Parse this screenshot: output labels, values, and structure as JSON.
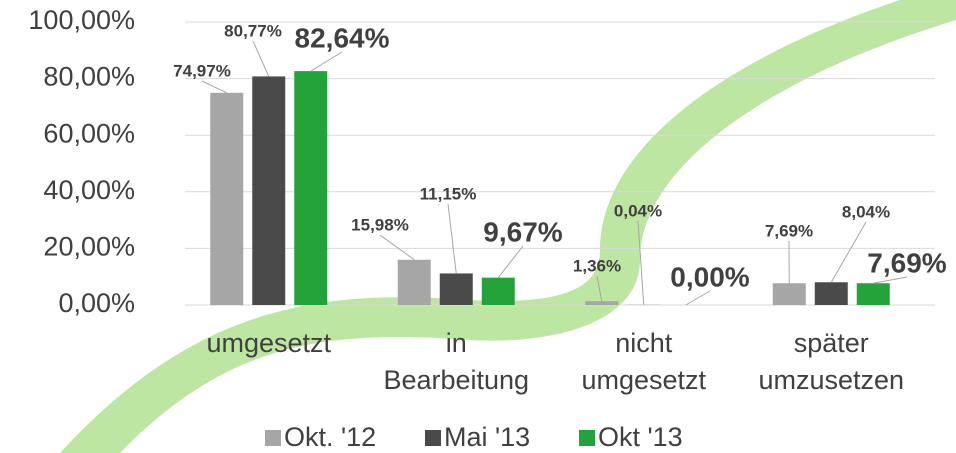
{
  "chart_data": {
    "type": "bar",
    "categories": [
      "umgesetzt",
      "in Bearbeitung",
      "nicht umgesetzt",
      "später umzusetzen"
    ],
    "series": [
      {
        "name": "Okt. '12",
        "color": "#a6a6a6",
        "values": [
          74.97,
          15.98,
          1.36,
          7.69
        ],
        "value_labels": [
          "74,97%",
          "15,98%",
          "1,36%",
          "7,69%"
        ]
      },
      {
        "name": "Mai '13",
        "color": "#4a4a4a",
        "values": [
          80.77,
          11.15,
          0.04,
          8.04
        ],
        "value_labels": [
          "80,77%",
          "11,15%",
          "0,04%",
          "8,04%"
        ]
      },
      {
        "name": "Okt '13",
        "color": "#23a33a",
        "values": [
          82.64,
          9.67,
          0.0,
          7.69
        ],
        "value_labels": [
          "82,64%",
          "9,67%",
          "0,00%",
          "7,69%"
        ]
      }
    ],
    "ylim": [
      0,
      100
    ],
    "yticks": [
      {
        "value": 0,
        "label": "0,00%"
      },
      {
        "value": 20,
        "label": "20,00%"
      },
      {
        "value": 40,
        "label": "40,00%"
      },
      {
        "value": 60,
        "label": "60,00%"
      },
      {
        "value": 80,
        "label": "80,00%"
      },
      {
        "value": 100,
        "label": "100,00%"
      }
    ],
    "grid": true,
    "legend": "bottom"
  }
}
